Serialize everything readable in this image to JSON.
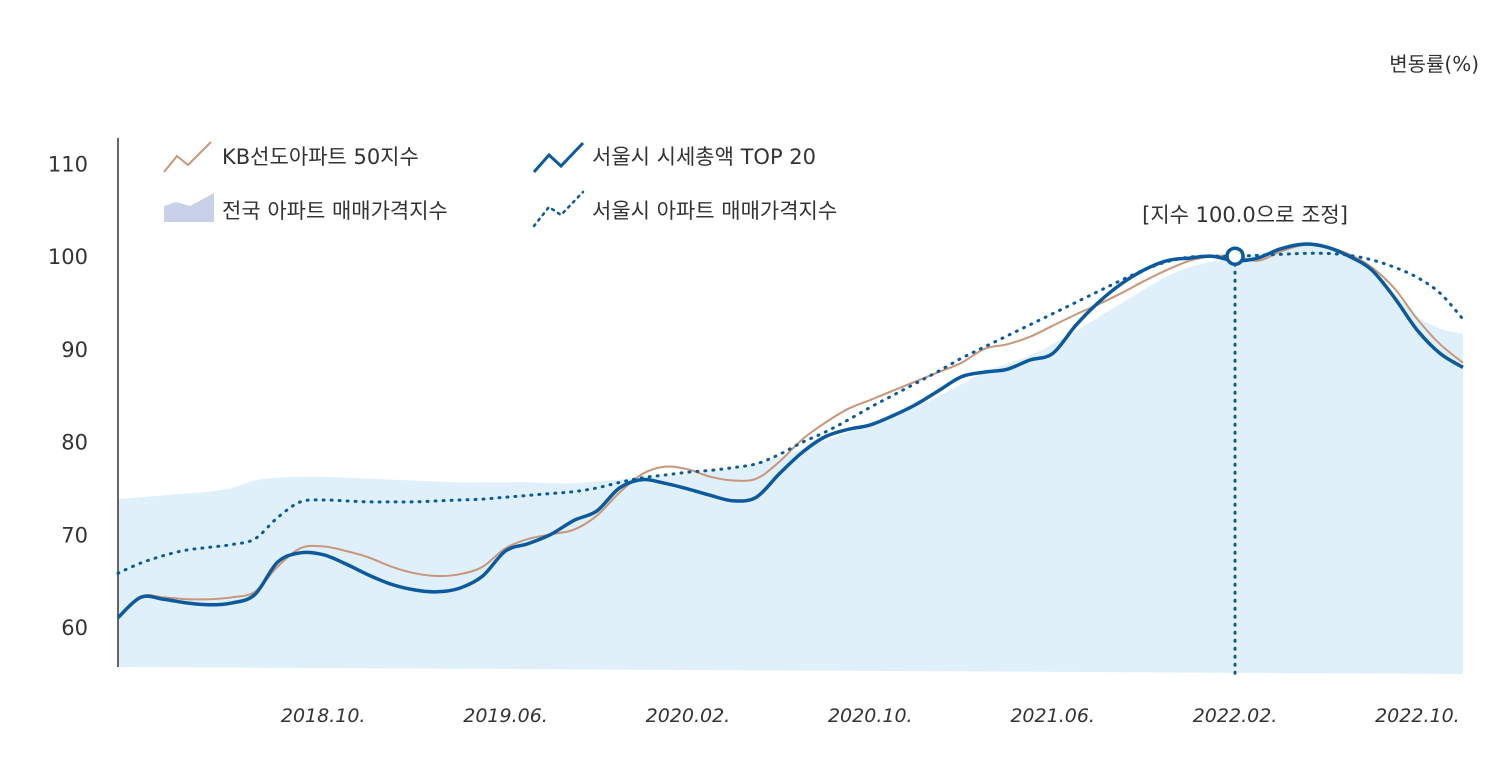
{
  "chart_data": {
    "type": "line",
    "unit_label": "변동률(%)",
    "ylim": [
      55,
      111
    ],
    "y_ticks": [
      60,
      70,
      80,
      90,
      100,
      110
    ],
    "x_ticks": [
      "2018.10.",
      "2019.06.",
      "2020.02.",
      "2020.10.",
      "2021.06.",
      "2022.02.",
      "2022.10."
    ],
    "annotation": {
      "label": "[지수 100.0으로 조정]",
      "x": "2022.02.",
      "value": 100
    },
    "grid": false,
    "legend_position": "top-left",
    "x": [
      "2018.01.",
      "2018.02.",
      "2018.03.",
      "2018.04.",
      "2018.05.",
      "2018.06.",
      "2018.07.",
      "2018.08.",
      "2018.09.",
      "2018.10.",
      "2018.11.",
      "2018.12.",
      "2019.01.",
      "2019.02.",
      "2019.03.",
      "2019.04.",
      "2019.05.",
      "2019.06.",
      "2019.07.",
      "2019.08.",
      "2019.09.",
      "2019.10.",
      "2019.11.",
      "2019.12.",
      "2020.01.",
      "2020.02.",
      "2020.03.",
      "2020.04.",
      "2020.05.",
      "2020.06.",
      "2020.07.",
      "2020.08.",
      "2020.09.",
      "2020.10.",
      "2020.11.",
      "2020.12.",
      "2021.01.",
      "2021.02.",
      "2021.03.",
      "2021.04.",
      "2021.05.",
      "2021.06.",
      "2021.07.",
      "2021.08.",
      "2021.09.",
      "2021.10.",
      "2021.11.",
      "2021.12.",
      "2022.01.",
      "2022.02.",
      "2022.03.",
      "2022.04.",
      "2022.05.",
      "2022.06.",
      "2022.07.",
      "2022.08.",
      "2022.09.",
      "2022.10.",
      "2022.11.",
      "2022.12."
    ],
    "series": [
      {
        "name": "KB선도아파트 50지수",
        "color": "#c9967a",
        "style": "thin",
        "values": [
          61,
          63.3,
          63.2,
          63,
          63,
          63.2,
          63.8,
          66.5,
          68.5,
          68.7,
          68.2,
          67.5,
          66.5,
          65.8,
          65.5,
          65.7,
          66.5,
          68.5,
          69.5,
          70,
          70.5,
          72,
          74.5,
          76.5,
          77.3,
          77,
          76.2,
          75.8,
          76,
          77.8,
          80.2,
          82,
          83.5,
          84.5,
          85.5,
          86.5,
          87.5,
          88.5,
          90,
          90.5,
          91.3,
          92.5,
          93.7,
          94.8,
          96,
          97.3,
          98.5,
          99.5,
          100,
          100,
          99.5,
          100.5,
          101.2,
          101,
          100.2,
          98.8,
          96.5,
          93.2,
          90.5,
          88.5
        ]
      },
      {
        "name": "서울시 시세총액 TOP 20",
        "color": "#0c5a9e",
        "style": "bold",
        "values": [
          61,
          63.2,
          63,
          62.6,
          62.4,
          62.6,
          63.5,
          67,
          68,
          67.8,
          66.8,
          65.6,
          64.6,
          64,
          63.8,
          64.2,
          65.5,
          68.2,
          69,
          70,
          71.5,
          72.5,
          75,
          75.9,
          75.5,
          74.9,
          74.2,
          73.6,
          74,
          76.5,
          78.8,
          80.5,
          81.3,
          81.8,
          82.8,
          84,
          85.5,
          87,
          87.5,
          87.8,
          88.8,
          89.5,
          92.5,
          95,
          97,
          98.5,
          99.5,
          99.8,
          100,
          99.5,
          99.8,
          100.8,
          101.3,
          101,
          100,
          98.5,
          95.5,
          92,
          89.5,
          88
        ]
      },
      {
        "name": "서울시 아파트 매매가격지수",
        "color": "#0c5a9e",
        "style": "dotted",
        "values": [
          65.8,
          66.9,
          67.7,
          68.3,
          68.6,
          68.9,
          69.5,
          71.8,
          73.5,
          73.7,
          73.6,
          73.5,
          73.5,
          73.5,
          73.6,
          73.7,
          73.8,
          74,
          74.2,
          74.4,
          74.6,
          75,
          75.6,
          76.1,
          76.4,
          76.7,
          76.9,
          77.2,
          77.6,
          78.6,
          79.9,
          81,
          82.3,
          83.7,
          85,
          86.3,
          87.6,
          89,
          90.2,
          91.4,
          92.6,
          93.8,
          95,
          96.2,
          97.4,
          98.5,
          99.4,
          99.9,
          100,
          100,
          100.1,
          100.2,
          100.3,
          100.3,
          100.1,
          99.6,
          98.8,
          97.7,
          96,
          93.2
        ]
      }
    ],
    "area": {
      "name": "전국 아파트 매매가격지수",
      "color": "#e0f0fa",
      "values": [
        73.8,
        74,
        74.2,
        74.4,
        74.6,
        75,
        75.8,
        76.1,
        76.2,
        76.2,
        76.1,
        76,
        75.9,
        75.8,
        75.7,
        75.6,
        75.6,
        75.6,
        75.6,
        75.5,
        75.5,
        75.7,
        75.9,
        76.1,
        76.3,
        76.5,
        76.8,
        77.1,
        77.6,
        78.3,
        79.2,
        80.1,
        81,
        81.9,
        82.8,
        83.8,
        84.9,
        86.2,
        87.5,
        88.4,
        89.3,
        90.5,
        91.9,
        93.4,
        94.9,
        96.4,
        97.8,
        98.8,
        99.4,
        99.8,
        100.2,
        100.8,
        101.2,
        101,
        100.3,
        98.6,
        96,
        93.5,
        92.2,
        91.6
      ]
    }
  },
  "legend": [
    {
      "label": "KB선도아파트 50지수",
      "icon": "thin-line-icon"
    },
    {
      "label": "서울시 시세총액 TOP 20",
      "icon": "bold-line-icon"
    },
    {
      "label": "전국 아파트 매매가격지수",
      "icon": "area-icon"
    },
    {
      "label": "서울시 아파트 매매가격지수",
      "icon": "dotted-line-icon"
    }
  ]
}
